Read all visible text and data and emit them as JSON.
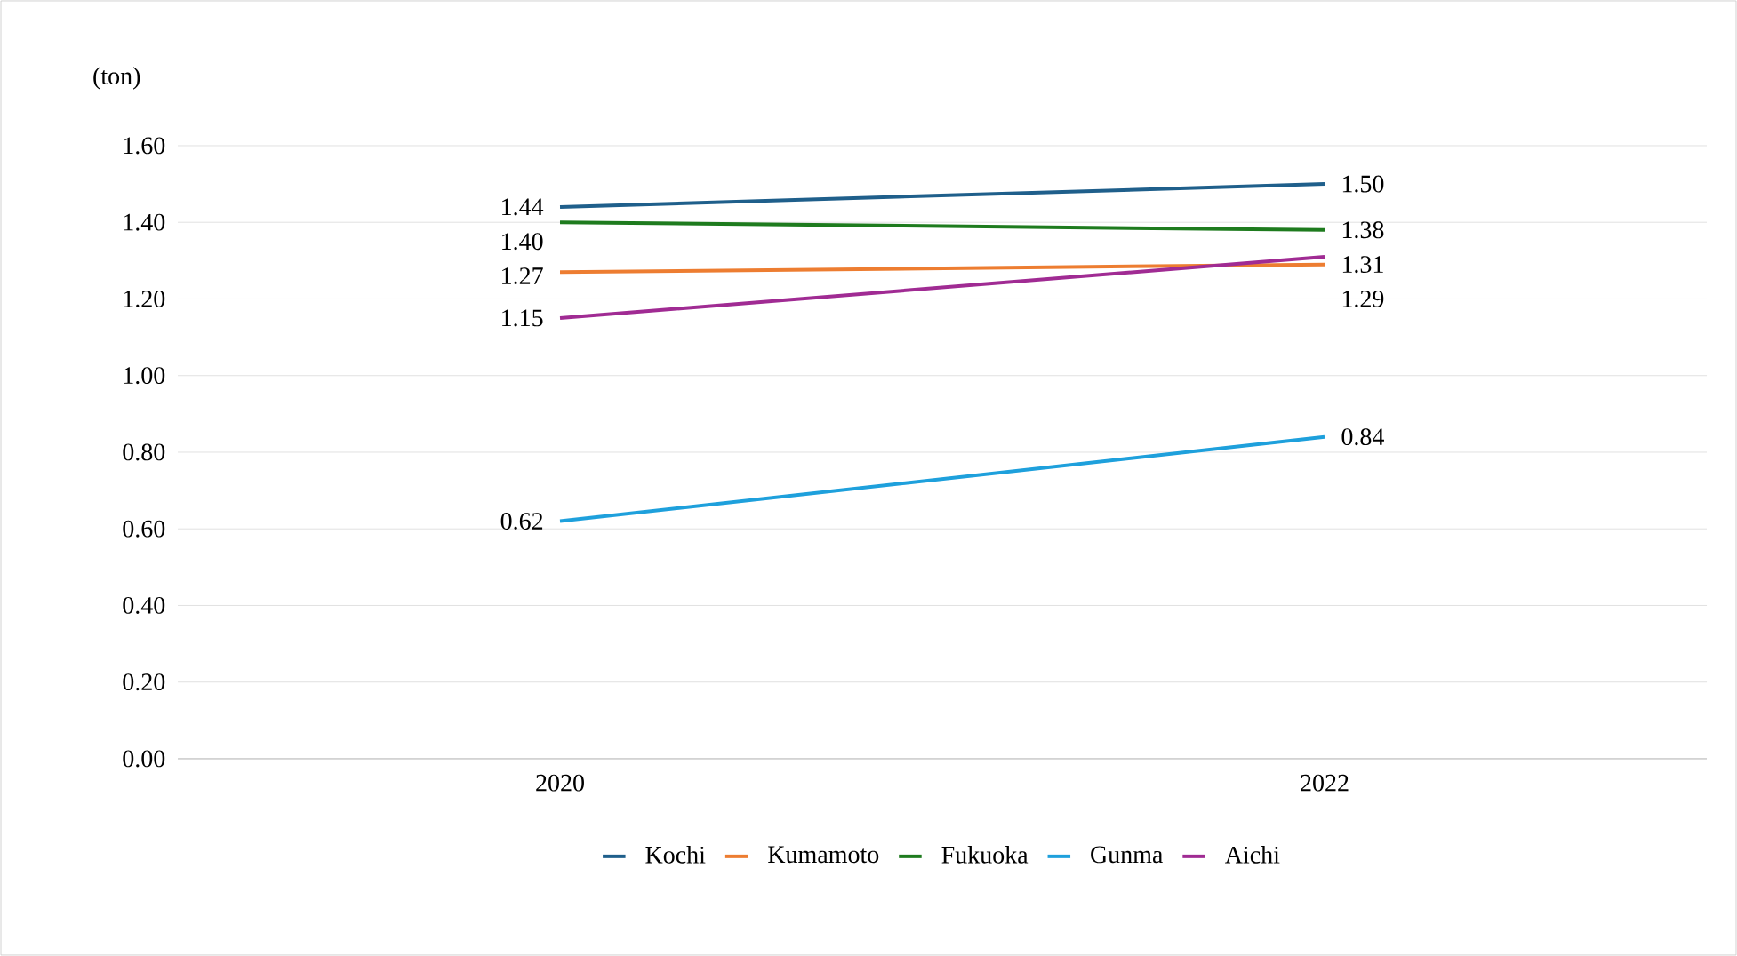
{
  "chart_data": {
    "type": "line",
    "ylabel": "(ton)",
    "categories": [
      "2020",
      "2022"
    ],
    "ylim": [
      0,
      1.6
    ],
    "yticks": [
      {
        "value": 0,
        "label": "0.00"
      },
      {
        "value": 0.2,
        "label": "0.20"
      },
      {
        "value": 0.4,
        "label": "0.40"
      },
      {
        "value": 0.6,
        "label": "0.60"
      },
      {
        "value": 0.8,
        "label": "0.80"
      },
      {
        "value": 1.0,
        "label": "1.00"
      },
      {
        "value": 1.2,
        "label": "1.20"
      },
      {
        "value": 1.4,
        "label": "1.40"
      },
      {
        "value": 1.6,
        "label": "1.60"
      }
    ],
    "grid": "y",
    "legend": "bottom",
    "marker": "none",
    "line_style": "solid",
    "series": [
      {
        "name": "Kochi",
        "color": "#1f5f8b",
        "values": [
          1.44,
          1.5
        ],
        "value_labels": [
          "1.44",
          "1.50"
        ]
      },
      {
        "name": "Kumamoto",
        "color": "#ed7d31",
        "values": [
          1.27,
          1.29
        ],
        "value_labels": [
          "1.27",
          "1.29"
        ]
      },
      {
        "name": "Fukuoka",
        "color": "#1e7b1e",
        "values": [
          1.4,
          1.38
        ],
        "value_labels": [
          "1.40",
          "1.38"
        ]
      },
      {
        "name": "Gunma",
        "color": "#1ea0dc",
        "values": [
          0.62,
          0.84
        ],
        "value_labels": [
          "0.62",
          "0.84"
        ]
      },
      {
        "name": "Aichi",
        "color": "#a02b93",
        "values": [
          1.15,
          1.31
        ],
        "value_labels": [
          "1.15",
          "1.31"
        ]
      }
    ]
  }
}
